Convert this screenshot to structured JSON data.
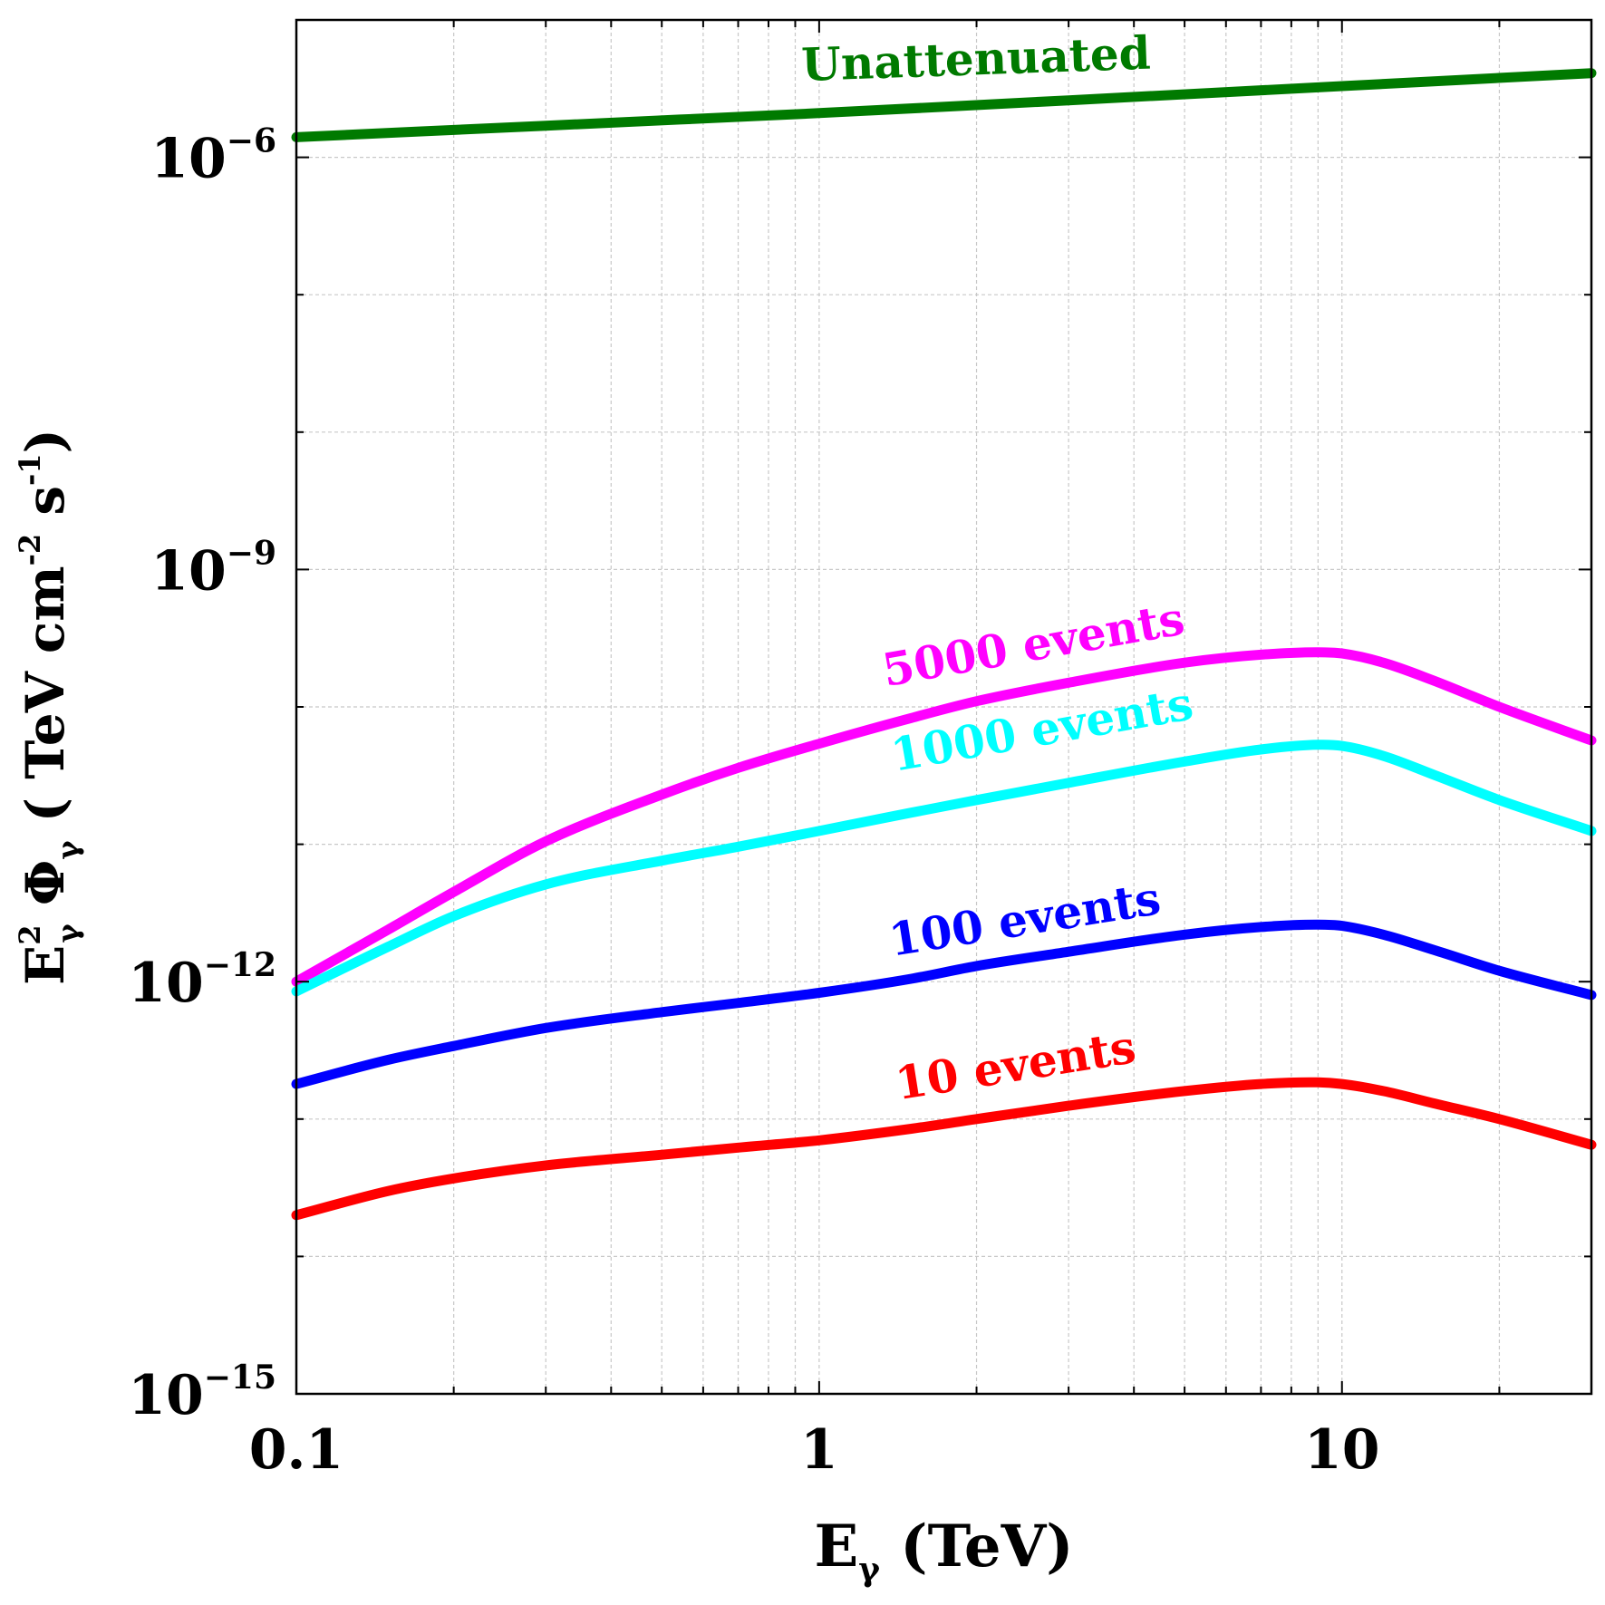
{
  "chart_data": {
    "type": "line",
    "xscale": "log",
    "yscale": "log",
    "xlim": [
      0.1,
      30
    ],
    "ylim": [
      1e-15,
      1e-05
    ],
    "grid": true,
    "xlabel": {
      "main": "E",
      "sub": "γ",
      "rest": " (TeV)"
    },
    "ylabel": {
      "main": "E",
      "sup": "2",
      "sub": "γ",
      "phi": " Φ",
      "phisub": "γ",
      "open": "  ( TeV cm",
      "sup2": "-2",
      "mid": " s",
      "sup3": "-1",
      "close": ")"
    },
    "xticks": [
      {
        "value": 0.1,
        "label": "0.1"
      },
      {
        "value": 1,
        "label": "1"
      },
      {
        "value": 10,
        "label": "10"
      }
    ],
    "yticks": [
      {
        "value": 1e-15,
        "base": "10",
        "exp": "−15"
      },
      {
        "value": 1e-12,
        "base": "10",
        "exp": "−12"
      },
      {
        "value": 1e-09,
        "base": "10",
        "exp": "−9"
      },
      {
        "value": 1e-06,
        "base": "10",
        "exp": "−6"
      }
    ],
    "series": [
      {
        "name": "Unattenuated",
        "color": "#007a00",
        "x": [
          0.1,
          0.3,
          1,
          3,
          10,
          30
        ],
        "y": [
          1.4e-06,
          1.7e-06,
          2.1e-06,
          2.6e-06,
          3.3e-06,
          4.1e-06
        ],
        "label_pos": {
          "x": 2.0,
          "y": 4e-06,
          "angle": -2
        }
      },
      {
        "name": "5000 events",
        "color": "#ff00ff",
        "x": [
          0.1,
          0.15,
          0.2,
          0.3,
          0.5,
          0.7,
          1,
          1.5,
          2,
          3,
          5,
          7,
          9,
          10,
          12,
          15,
          20,
          30
        ],
        "y": [
          1e-12,
          2.4e-12,
          4.5e-12,
          1.05e-11,
          2.3e-11,
          3.6e-11,
          5.4e-11,
          8.3e-11,
          1.1e-10,
          1.5e-10,
          2.1e-10,
          2.4e-10,
          2.5e-10,
          2.45e-10,
          2.1e-10,
          1.55e-10,
          1e-10,
          5.7e-11
        ],
        "label_pos": {
          "x": 2.6,
          "y": 2.2e-10,
          "angle": -10
        }
      },
      {
        "name": "1000 events",
        "color": "#00ffff",
        "x": [
          0.1,
          0.15,
          0.2,
          0.3,
          0.5,
          0.7,
          1,
          1.5,
          2,
          3,
          5,
          7,
          9,
          10,
          12,
          15,
          20,
          30
        ],
        "y": [
          8.5e-13,
          1.8e-12,
          3e-12,
          5.1e-12,
          7.6e-12,
          9.6e-12,
          1.25e-11,
          1.7e-11,
          2.1e-11,
          2.8e-11,
          4e-11,
          4.9e-11,
          5.3e-11,
          5.2e-11,
          4.4e-11,
          3.2e-11,
          2.1e-11,
          1.25e-11
        ],
        "label_pos": {
          "x": 2.7,
          "y": 5.3e-11,
          "angle": -10
        }
      },
      {
        "name": "100 events",
        "color": "#0000ff",
        "x": [
          0.1,
          0.15,
          0.2,
          0.3,
          0.5,
          0.7,
          1,
          1.5,
          2,
          3,
          5,
          7,
          9,
          10,
          12,
          15,
          20,
          30
        ],
        "y": [
          1.8e-13,
          2.7e-13,
          3.4e-13,
          4.6e-13,
          6e-13,
          7e-13,
          8.3e-13,
          1.05e-12,
          1.3e-12,
          1.65e-12,
          2.2e-12,
          2.5e-12,
          2.6e-12,
          2.55e-12,
          2.2e-12,
          1.7e-12,
          1.2e-12,
          8e-13
        ],
        "label_pos": {
          "x": 2.5,
          "y": 2.2e-12,
          "angle": -9
        }
      },
      {
        "name": "10 events",
        "color": "#ff0000",
        "x": [
          0.1,
          0.15,
          0.2,
          0.3,
          0.5,
          0.7,
          1,
          1.5,
          2,
          3,
          5,
          7,
          9,
          10,
          12,
          15,
          20,
          30
        ],
        "y": [
          2e-14,
          3e-14,
          3.7e-14,
          4.6e-14,
          5.5e-14,
          6.2e-14,
          7e-14,
          8.5e-14,
          1e-13,
          1.25e-13,
          1.6e-13,
          1.8e-13,
          1.85e-13,
          1.8e-13,
          1.6e-13,
          1.3e-13,
          1e-13,
          6.5e-14
        ],
        "label_pos": {
          "x": 2.4,
          "y": 1.9e-13,
          "angle": -9
        }
      }
    ]
  }
}
